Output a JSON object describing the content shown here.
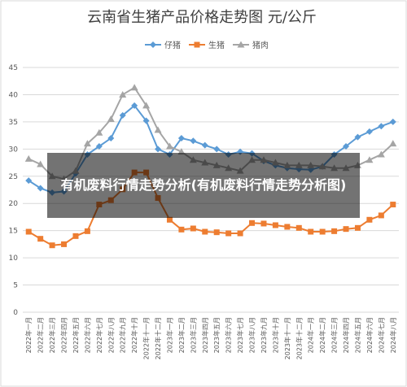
{
  "chart_data": {
    "type": "line",
    "title": "云南省生猪产品价格走势图    元/公斤",
    "categories": [
      "2022年一月",
      "2022年二月",
      "2022年三月",
      "2022年四月",
      "2022年五月",
      "2022年六月",
      "2022年七月",
      "2022年八月",
      "2022年九月",
      "2022年十月",
      "2022年十一月",
      "2022年十二月",
      "2023年一月",
      "2023年二月",
      "2023年三月",
      "2023年四月",
      "2023年五月",
      "2023年六月",
      "2023年七月",
      "2023年八月",
      "2023年九月",
      "2023年十月",
      "2023年十一月",
      "2023年十二月",
      "2024年一月",
      "2024年二月",
      "2024年三月",
      "2024年四月",
      "2024年五月",
      "2024年六月",
      "2024年七月",
      "2024年八月"
    ],
    "series": [
      {
        "name": "仔猪",
        "color": "#5b9bd5",
        "marker": "diamond",
        "values": [
          24.2,
          22.8,
          22,
          22.2,
          25.5,
          29,
          30.5,
          32,
          36.2,
          38,
          35.2,
          30,
          29,
          32,
          31.5,
          30.7,
          30,
          29,
          29.5,
          29.2,
          27.8,
          27,
          26.5,
          26.3,
          26.2,
          26.8,
          29,
          30.5,
          32.2,
          33.2,
          34.2,
          35
        ]
      },
      {
        "name": "生猪",
        "color": "#ed7d31",
        "marker": "square",
        "values": [
          14.8,
          13.5,
          12.3,
          12.5,
          14,
          14.9,
          19.8,
          20.6,
          22.6,
          25.7,
          25.7,
          21,
          17,
          15.2,
          15.4,
          14.8,
          14.7,
          14.5,
          14.5,
          16.4,
          16.3,
          16,
          15.7,
          15.5,
          14.8,
          14.8,
          14.9,
          15.3,
          15.5,
          17,
          17.8,
          19.8
        ]
      },
      {
        "name": "猪肉",
        "color": "#a5a5a5",
        "marker": "triangle",
        "values": [
          28.2,
          27.2,
          25,
          24.5,
          26,
          31,
          33,
          35.5,
          40,
          41.3,
          38,
          33.5,
          30.5,
          29.5,
          28,
          27.5,
          27,
          26.5,
          26,
          28,
          28,
          27.5,
          27,
          27,
          27,
          26.8,
          26.5,
          26.5,
          27,
          28,
          29,
          31
        ]
      }
    ],
    "ylim": [
      0,
      45
    ],
    "yticks": [
      0,
      5,
      10,
      15,
      20,
      25,
      30,
      35,
      40,
      45
    ],
    "grid": true
  },
  "overlay_caption": "有机废料行情走势分析(有机废料行情走势分析图)"
}
